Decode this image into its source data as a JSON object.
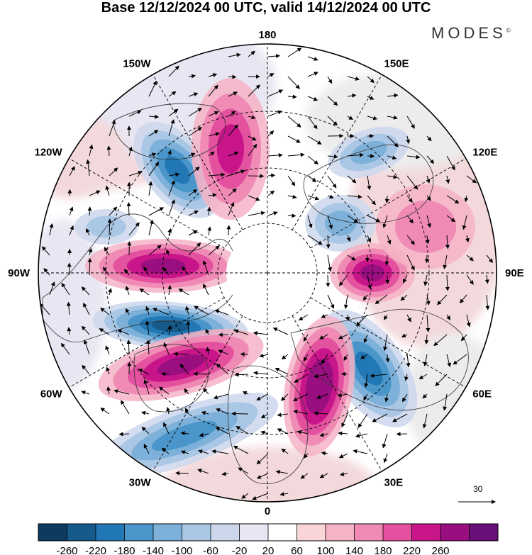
{
  "title": "Base 12/12/2024 00 UTC, valid 14/12/2024 00 UTC",
  "brand": "MODES",
  "brand_mark": "©",
  "map": {
    "projection": "north-polar-stereographic",
    "field_colors": {
      "negative": "#3b6fb0",
      "positive": "#d63f99",
      "neutral": "#ffffff",
      "land_shade": "#ececec"
    },
    "longitude_labels": [
      {
        "id": "lon-180",
        "text": "180"
      },
      {
        "id": "lon-150e",
        "text": "150E"
      },
      {
        "id": "lon-120e",
        "text": "120E"
      },
      {
        "id": "lon-90e",
        "text": "90E"
      },
      {
        "id": "lon-60e",
        "text": "60E"
      },
      {
        "id": "lon-30e",
        "text": "30E"
      },
      {
        "id": "lon-0",
        "text": "0"
      },
      {
        "id": "lon-30w",
        "text": "30W"
      },
      {
        "id": "lon-60w",
        "text": "60W"
      },
      {
        "id": "lon-90w",
        "text": "90W"
      },
      {
        "id": "lon-120w",
        "text": "120W"
      },
      {
        "id": "lon-150w",
        "text": "150W"
      }
    ],
    "reference_vector": {
      "label": "30"
    }
  },
  "colorbar": {
    "colors": [
      "#0e3a5e",
      "#155a8a",
      "#2278b5",
      "#4a95c9",
      "#7eb1d9",
      "#aac7e5",
      "#cdd7ec",
      "#e8e6f2",
      "#ffffff",
      "#f9d5d8",
      "#f5b3c6",
      "#f08bb6",
      "#e4519f",
      "#c8168a",
      "#9a0f80",
      "#6a0f7a"
    ],
    "ticks": [
      "-260",
      "-220",
      "-180",
      "-140",
      "-100",
      "-60",
      "-20",
      "20",
      "60",
      "100",
      "140",
      "180",
      "220",
      "260"
    ]
  }
}
